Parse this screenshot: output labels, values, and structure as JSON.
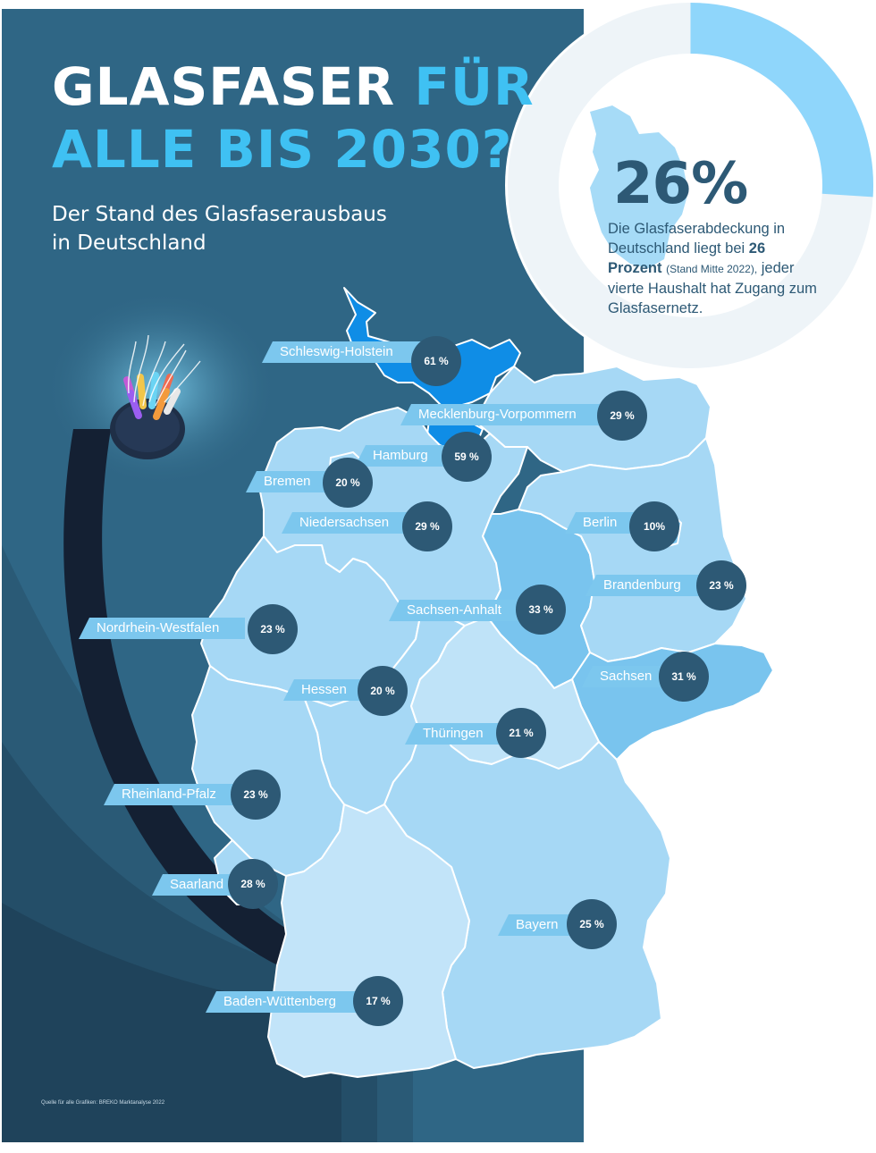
{
  "header": {
    "title_part1": "GLASFASER",
    "title_part2": "FÜR",
    "title_line2": "ALLE BIS 2030?",
    "subtitle_line1": "Der Stand des Glasfaserausbaus",
    "subtitle_line2": "in Deutschland"
  },
  "highlight": {
    "value": "26%",
    "share": 0.26,
    "text_1": "Die Glasfaserabdeckung in Deutschland liegt bei",
    "text_bold": "26 Prozent",
    "text_small": "(Stand Mitte 2022),",
    "text_2": "jeder vierte Haushalt hat Zugang zum Glasfasernetz."
  },
  "states": [
    {
      "name": "Schleswig-Holstein",
      "value": "61 %"
    },
    {
      "name": "Mecklenburg-Vorpommern",
      "value": "29 %"
    },
    {
      "name": "Hamburg",
      "value": "59  %"
    },
    {
      "name": "Bremen",
      "value": "20  %"
    },
    {
      "name": "Niedersachsen",
      "value": "29 %"
    },
    {
      "name": "Berlin",
      "value": "10%"
    },
    {
      "name": "Brandenburg",
      "value": "23 %"
    },
    {
      "name": "Sachsen-Anhalt",
      "value": "33 %"
    },
    {
      "name": "Nordrhein-Westfalen",
      "value": "23 %"
    },
    {
      "name": "Sachsen",
      "value": "31 %"
    },
    {
      "name": "Hessen",
      "value": "20 %"
    },
    {
      "name": "Thüringen",
      "value": "21 %"
    },
    {
      "name": "Rheinland-Pfalz",
      "value": "23 %"
    },
    {
      "name": "Saarland",
      "value": "28 %"
    },
    {
      "name": "Bayern",
      "value": "25 %"
    },
    {
      "name": "Baden-Wüttenberg",
      "value": "17 %"
    }
  ],
  "source": "Quelle für alle Grafiken: BREKO Marktanalyse 2022",
  "colors": {
    "background": "#2f6685",
    "title_accent": "#3fc1f3",
    "badge": "#2d5975",
    "label": "#7cc7ee",
    "ring_fill": "#8fd6fb",
    "ring_track": "#eef4f8"
  },
  "icons": {
    "cable": "fiber-optic-cable-illustration"
  }
}
